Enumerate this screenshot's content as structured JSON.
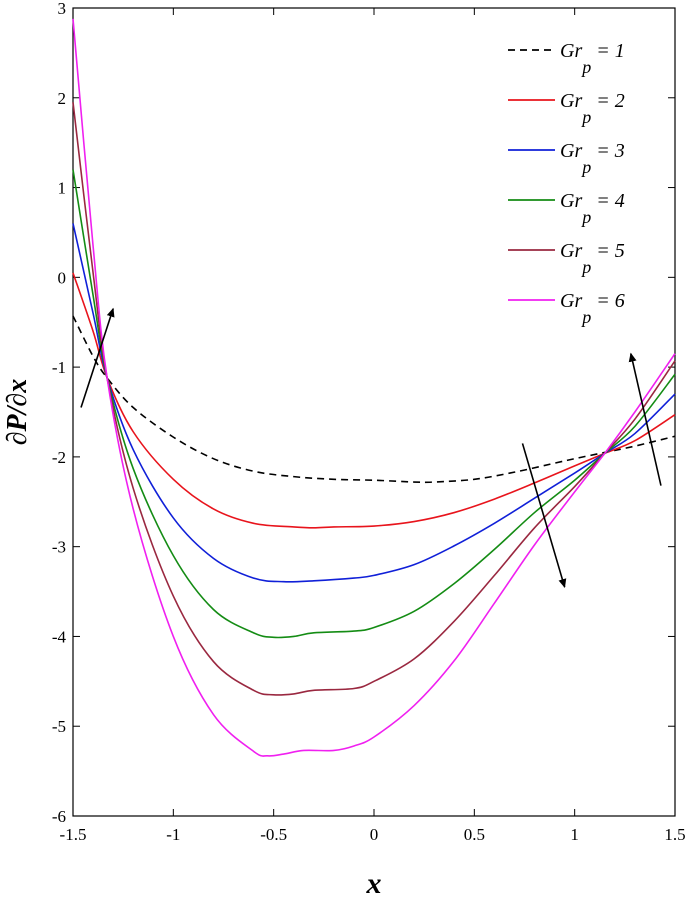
{
  "chart_data": {
    "type": "line",
    "title": "",
    "xlabel": "x",
    "ylabel": "∂P/∂x",
    "xlim": [
      -1.5,
      1.5
    ],
    "ylim": [
      -6,
      3
    ],
    "xticks": [
      -1.5,
      -1,
      -0.5,
      0,
      0.5,
      1,
      1.5
    ],
    "xtick_labels": [
      "-1.5",
      "-1",
      "-0.5",
      "0",
      "0.5",
      "1",
      "1.5"
    ],
    "yticks": [
      -6,
      -5,
      -4,
      -3,
      -2,
      -1,
      0,
      1,
      2,
      3
    ],
    "ytick_labels": [
      "-6",
      "-5",
      "-4",
      "-3",
      "-2",
      "-1",
      "0",
      "1",
      "2",
      "3"
    ],
    "grid": false,
    "legend_position": "top-right",
    "legend_param": "Gr",
    "legend_subscript": "p",
    "series": [
      {
        "name": "1",
        "color": "#000000",
        "dashed": true,
        "x": [
          -1.5,
          -1.4,
          -1.33,
          -1.2,
          -1.0,
          -0.8,
          -0.6,
          -0.4,
          -0.2,
          0.0,
          0.2,
          0.3,
          0.5,
          0.7,
          0.9,
          1.0,
          1.15,
          1.3,
          1.5
        ],
        "y": [
          -0.43,
          -0.88,
          -1.12,
          -1.45,
          -1.78,
          -2.02,
          -2.16,
          -2.22,
          -2.25,
          -2.26,
          -2.28,
          -2.28,
          -2.25,
          -2.17,
          -2.07,
          -2.02,
          -1.95,
          -1.88,
          -1.77
        ]
      },
      {
        "name": "2",
        "color": "#e8141c",
        "dashed": false,
        "x": [
          -1.5,
          -1.4,
          -1.33,
          -1.2,
          -1.0,
          -0.8,
          -0.6,
          -0.4,
          -0.3,
          -0.2,
          0.0,
          0.2,
          0.4,
          0.6,
          0.8,
          1.0,
          1.15,
          1.3,
          1.5
        ],
        "y": [
          0.05,
          -0.6,
          -1.12,
          -1.72,
          -2.25,
          -2.58,
          -2.74,
          -2.78,
          -2.79,
          -2.78,
          -2.77,
          -2.72,
          -2.62,
          -2.47,
          -2.29,
          -2.1,
          -1.96,
          -1.82,
          -1.53
        ]
      },
      {
        "name": "3",
        "color": "#1020d8",
        "dashed": false,
        "x": [
          -1.5,
          -1.4,
          -1.33,
          -1.2,
          -1.0,
          -0.8,
          -0.6,
          -0.45,
          -0.3,
          -0.1,
          0.0,
          0.2,
          0.4,
          0.6,
          0.8,
          1.0,
          1.15,
          1.3,
          1.5
        ],
        "y": [
          0.6,
          -0.4,
          -1.12,
          -1.92,
          -2.68,
          -3.13,
          -3.35,
          -3.39,
          -3.38,
          -3.35,
          -3.32,
          -3.2,
          -2.99,
          -2.74,
          -2.46,
          -2.18,
          -1.96,
          -1.74,
          -1.3
        ]
      },
      {
        "name": "4",
        "color": "#148c14",
        "dashed": false,
        "x": [
          -1.5,
          -1.4,
          -1.33,
          -1.2,
          -1.0,
          -0.8,
          -0.6,
          -0.5,
          -0.4,
          -0.3,
          -0.1,
          0.0,
          0.2,
          0.4,
          0.6,
          0.8,
          1.0,
          1.15,
          1.3,
          1.5
        ],
        "y": [
          1.2,
          -0.2,
          -1.12,
          -2.13,
          -3.1,
          -3.7,
          -3.96,
          -4.01,
          -4.0,
          -3.96,
          -3.94,
          -3.9,
          -3.72,
          -3.41,
          -3.03,
          -2.62,
          -2.26,
          -1.96,
          -1.66,
          -1.08
        ]
      },
      {
        "name": "5",
        "color": "#9a2840",
        "dashed": false,
        "x": [
          -1.5,
          -1.4,
          -1.33,
          -1.2,
          -1.0,
          -0.8,
          -0.6,
          -0.5,
          -0.4,
          -0.3,
          -0.1,
          0.0,
          0.2,
          0.4,
          0.6,
          0.8,
          1.0,
          1.15,
          1.3,
          1.5
        ],
        "y": [
          1.95,
          0.05,
          -1.12,
          -2.35,
          -3.55,
          -4.28,
          -4.6,
          -4.65,
          -4.64,
          -4.6,
          -4.58,
          -4.5,
          -4.25,
          -3.83,
          -3.32,
          -2.79,
          -2.33,
          -1.96,
          -1.58,
          -0.93
        ]
      },
      {
        "name": "6",
        "color": "#f020f0",
        "dashed": false,
        "x": [
          -1.5,
          -1.4,
          -1.33,
          -1.2,
          -1.0,
          -0.8,
          -0.6,
          -0.53,
          -0.45,
          -0.35,
          -0.2,
          -0.1,
          0.0,
          0.2,
          0.4,
          0.6,
          0.8,
          1.0,
          1.15,
          1.3,
          1.5
        ],
        "y": [
          2.88,
          0.35,
          -1.12,
          -2.58,
          -4.0,
          -4.87,
          -5.28,
          -5.33,
          -5.31,
          -5.27,
          -5.27,
          -5.22,
          -5.12,
          -4.77,
          -4.27,
          -3.63,
          -2.98,
          -2.39,
          -1.96,
          -1.5,
          -0.85
        ]
      }
    ],
    "annotations": [
      {
        "type": "arrow",
        "from": [
          -1.46,
          -1.45
        ],
        "to": [
          -1.3,
          -0.35
        ]
      },
      {
        "type": "arrow",
        "from": [
          0.74,
          -1.85
        ],
        "to": [
          0.95,
          -3.45
        ]
      },
      {
        "type": "arrow",
        "from": [
          1.43,
          -2.32
        ],
        "to": [
          1.28,
          -0.85
        ]
      }
    ]
  }
}
